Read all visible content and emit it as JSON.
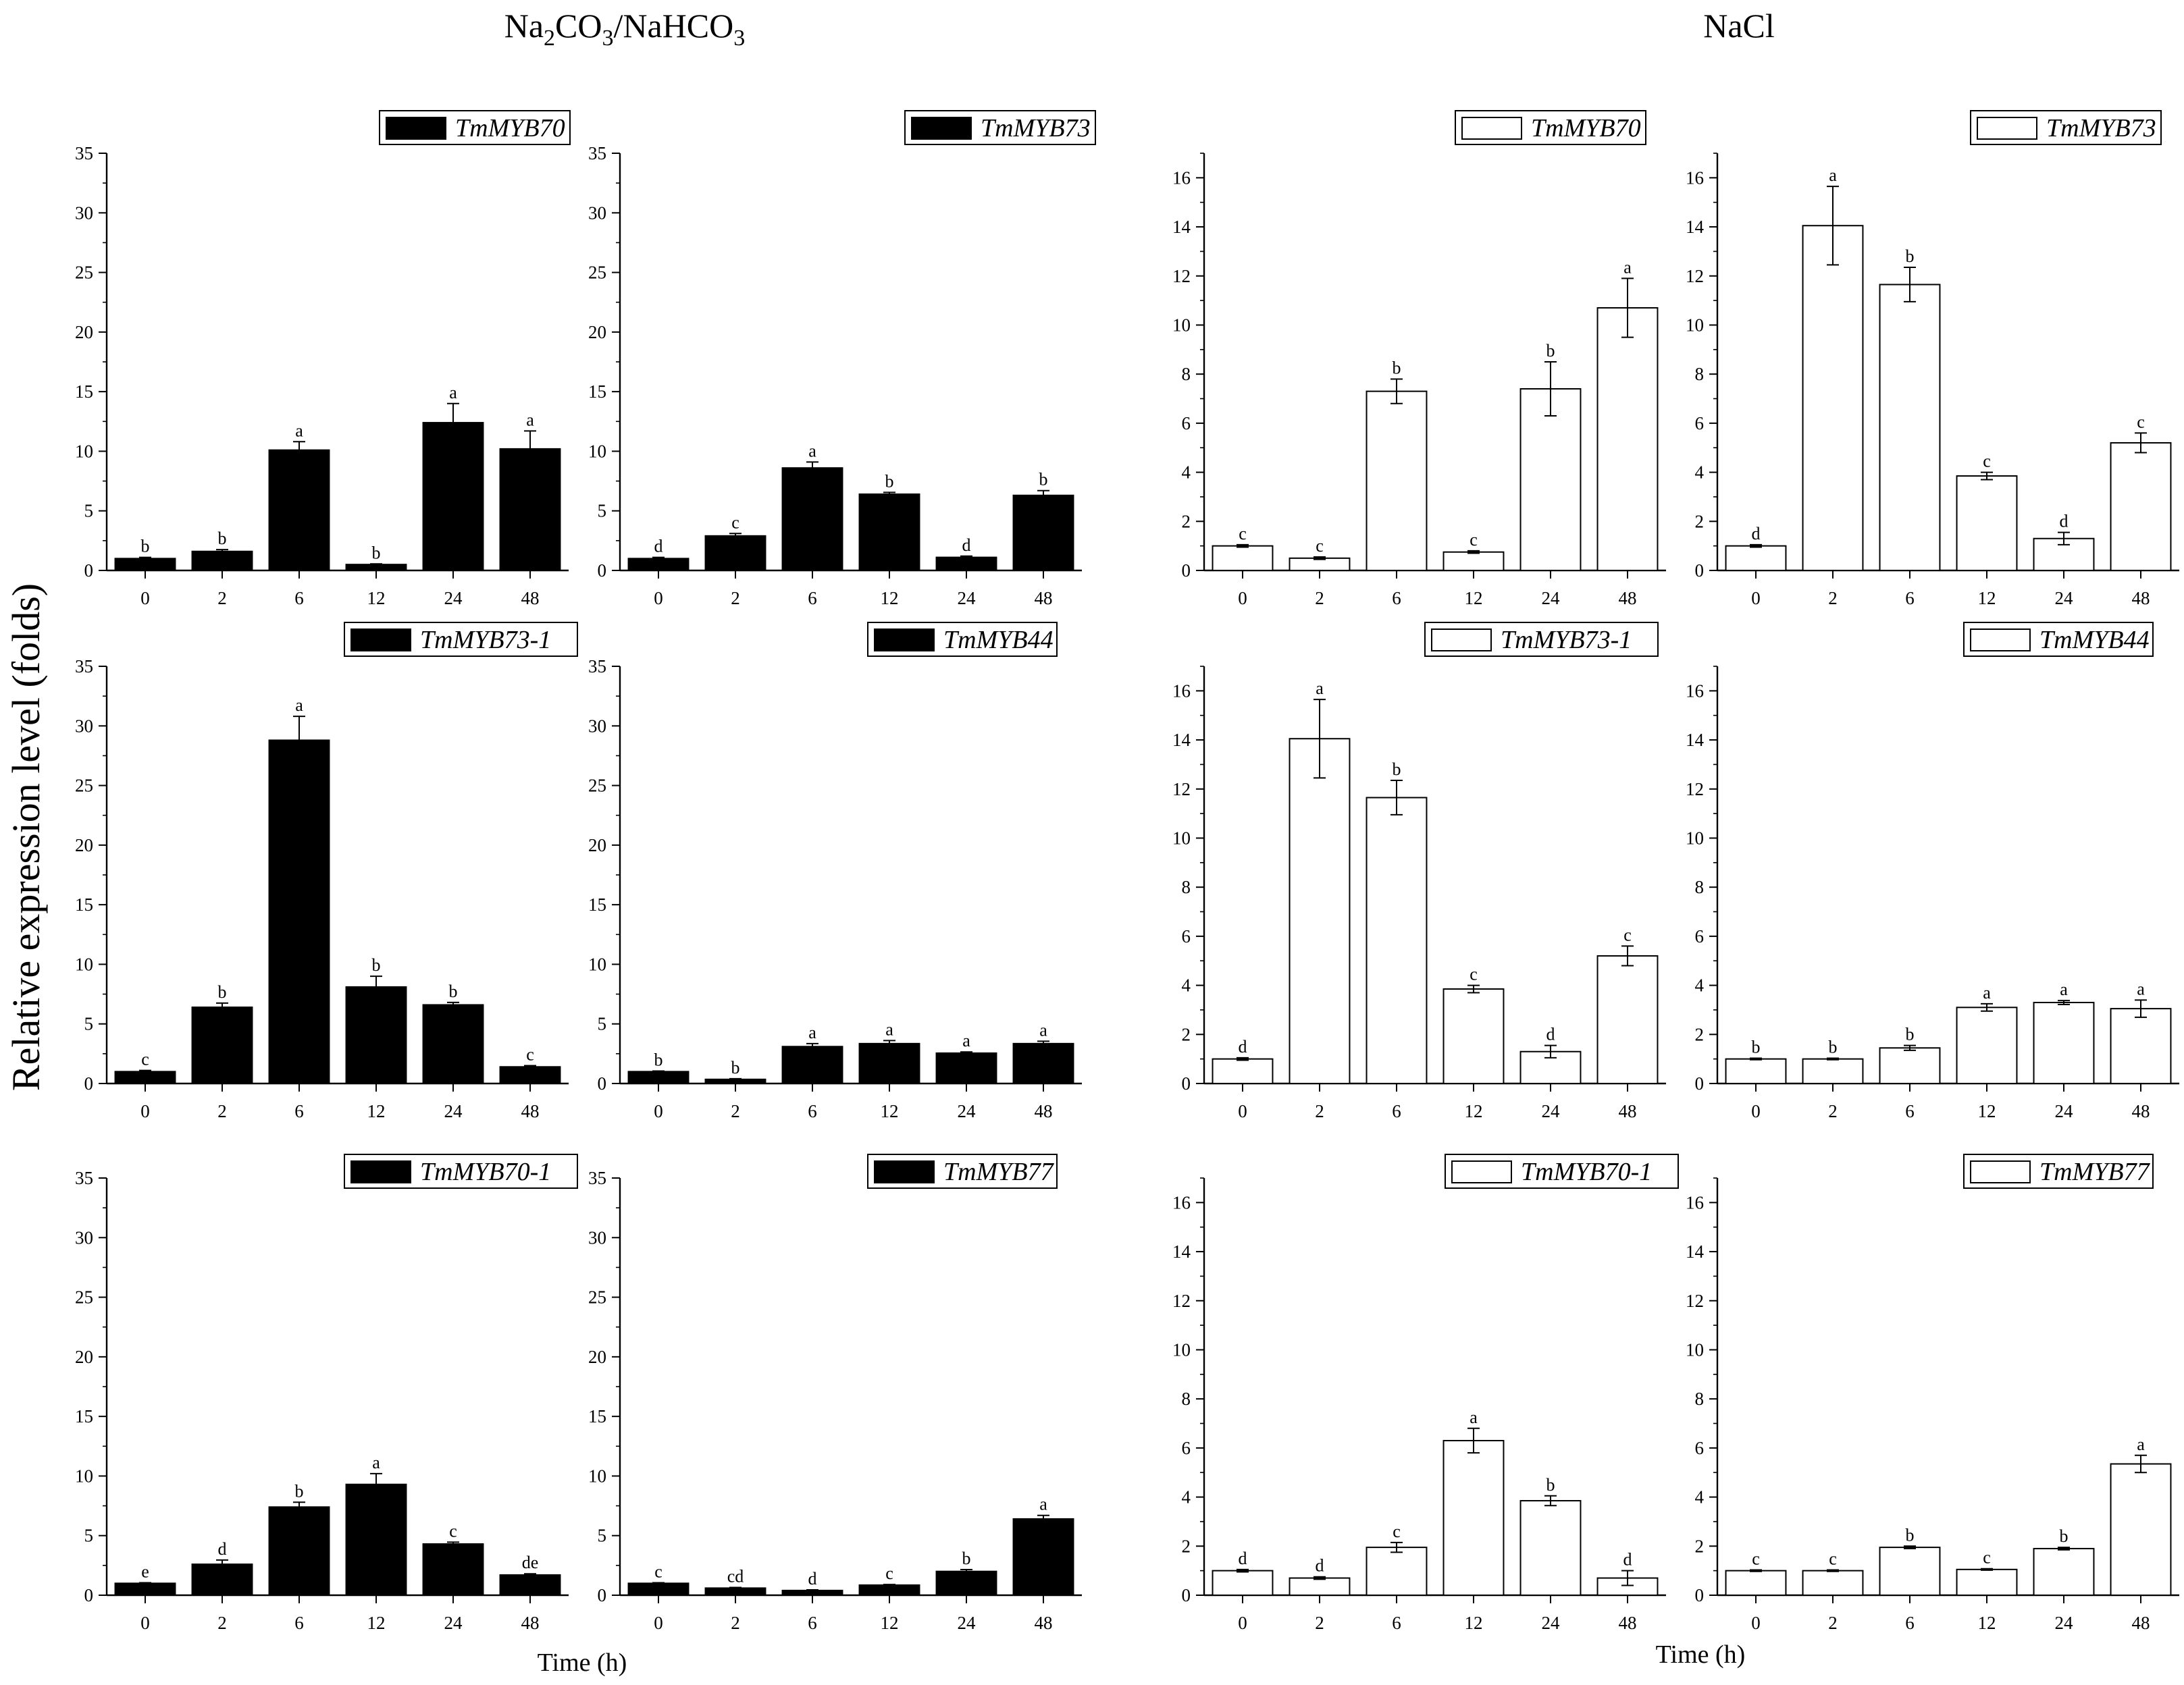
{
  "figure": {
    "group_left_title": "Na2CO3/NaHCO3",
    "group_right_title": "NaCl",
    "ylabel": "Relative expression level (folds)",
    "xlabel": "Time (h)",
    "colors": {
      "black_fill": "#000000",
      "white_fill": "#ffffff",
      "axis": "#000000"
    }
  },
  "chart_data": [
    {
      "type": "bar",
      "group": "Na2CO3/NaHCO3",
      "legend": "TmMYB70",
      "fill": "black",
      "categories": [
        "0",
        "2",
        "6",
        "12",
        "24",
        "48"
      ],
      "values": [
        1.0,
        1.6,
        10.1,
        0.5,
        12.4,
        10.2
      ],
      "errors": [
        0.1,
        0.15,
        0.7,
        0.05,
        1.6,
        1.5
      ],
      "letters": [
        "b",
        "b",
        "a",
        "b",
        "a",
        "a"
      ],
      "ylim": [
        0,
        35
      ],
      "yticks": [
        0,
        5,
        10,
        15,
        20,
        25,
        30,
        35
      ]
    },
    {
      "type": "bar",
      "group": "Na2CO3/NaHCO3",
      "legend": "TmMYB73",
      "fill": "black",
      "categories": [
        "0",
        "2",
        "6",
        "12",
        "24",
        "48"
      ],
      "values": [
        1.0,
        2.9,
        8.6,
        6.4,
        1.1,
        6.3
      ],
      "errors": [
        0.1,
        0.2,
        0.5,
        0.15,
        0.1,
        0.4
      ],
      "letters": [
        "d",
        "c",
        "a",
        "b",
        "d",
        "b"
      ],
      "ylim": [
        0,
        35
      ],
      "yticks": [
        0,
        5,
        10,
        15,
        20,
        25,
        30,
        35
      ]
    },
    {
      "type": "bar",
      "group": "NaCl",
      "legend": "TmMYB70",
      "fill": "white",
      "categories": [
        "0",
        "2",
        "6",
        "12",
        "24",
        "48"
      ],
      "values": [
        1.0,
        0.5,
        7.3,
        0.75,
        7.4,
        10.7
      ],
      "errors": [
        0.05,
        0.05,
        0.5,
        0.05,
        1.1,
        1.2
      ],
      "letters": [
        "c",
        "c",
        "b",
        "c",
        "b",
        "a"
      ],
      "ylim": [
        0,
        17
      ],
      "yticks": [
        0,
        2,
        4,
        6,
        8,
        10,
        12,
        14,
        16
      ]
    },
    {
      "type": "bar",
      "group": "NaCl",
      "legend": "TmMYB73",
      "fill": "white",
      "categories": [
        "0",
        "2",
        "6",
        "12",
        "24",
        "48"
      ],
      "values": [
        1.0,
        14.05,
        11.65,
        3.85,
        1.3,
        5.2
      ],
      "errors": [
        0.05,
        1.6,
        0.7,
        0.15,
        0.25,
        0.4
      ],
      "letters": [
        "d",
        "a",
        "b",
        "c",
        "d",
        "c"
      ],
      "ylim": [
        0,
        17
      ],
      "yticks": [
        0,
        2,
        4,
        6,
        8,
        10,
        12,
        14,
        16
      ]
    },
    {
      "type": "bar",
      "group": "Na2CO3/NaHCO3",
      "legend": "TmMYB73-1",
      "fill": "black",
      "categories": [
        "0",
        "2",
        "6",
        "12",
        "24",
        "48"
      ],
      "values": [
        1.0,
        6.4,
        28.8,
        8.1,
        6.6,
        1.4
      ],
      "errors": [
        0.1,
        0.35,
        2.0,
        0.9,
        0.2,
        0.1
      ],
      "letters": [
        "c",
        "b",
        "a",
        "b",
        "b",
        "c"
      ],
      "ylim": [
        0,
        35
      ],
      "yticks": [
        0,
        5,
        10,
        15,
        20,
        25,
        30,
        35
      ]
    },
    {
      "type": "bar",
      "group": "Na2CO3/NaHCO3",
      "legend": "TmMYB44",
      "fill": "black",
      "categories": [
        "0",
        "2",
        "6",
        "12",
        "24",
        "48"
      ],
      "values": [
        1.0,
        0.35,
        3.1,
        3.35,
        2.55,
        3.35
      ],
      "errors": [
        0.05,
        0.05,
        0.25,
        0.25,
        0.1,
        0.2
      ],
      "letters": [
        "b",
        "b",
        "a",
        "a",
        "a",
        "a"
      ],
      "ylim": [
        0,
        35
      ],
      "yticks": [
        0,
        5,
        10,
        15,
        20,
        25,
        30,
        35
      ]
    },
    {
      "type": "bar",
      "group": "NaCl",
      "legend": "TmMYB73-1",
      "fill": "white",
      "categories": [
        "0",
        "2",
        "6",
        "12",
        "24",
        "48"
      ],
      "values": [
        1.0,
        14.05,
        11.65,
        3.85,
        1.3,
        5.2
      ],
      "errors": [
        0.05,
        1.6,
        0.7,
        0.15,
        0.25,
        0.4
      ],
      "letters": [
        "d",
        "a",
        "b",
        "c",
        "d",
        "c"
      ],
      "ylim": [
        0,
        17
      ],
      "yticks": [
        0,
        2,
        4,
        6,
        8,
        10,
        12,
        14,
        16
      ]
    },
    {
      "type": "bar",
      "group": "NaCl",
      "legend": "TmMYB44",
      "fill": "white",
      "categories": [
        "0",
        "2",
        "6",
        "12",
        "24",
        "48"
      ],
      "values": [
        1.0,
        1.0,
        1.45,
        3.1,
        3.3,
        3.05
      ],
      "errors": [
        0.03,
        0.03,
        0.1,
        0.15,
        0.08,
        0.35
      ],
      "letters": [
        "b",
        "b",
        "b",
        "a",
        "a",
        "a"
      ],
      "ylim": [
        0,
        17
      ],
      "yticks": [
        0,
        2,
        4,
        6,
        8,
        10,
        12,
        14,
        16
      ]
    },
    {
      "type": "bar",
      "group": "Na2CO3/NaHCO3",
      "legend": "TmMYB70-1",
      "fill": "black",
      "categories": [
        "0",
        "2",
        "6",
        "12",
        "24",
        "48"
      ],
      "values": [
        1.0,
        2.6,
        7.4,
        9.3,
        4.3,
        1.7
      ],
      "errors": [
        0.05,
        0.35,
        0.4,
        0.9,
        0.15,
        0.1
      ],
      "letters": [
        "e",
        "d",
        "b",
        "a",
        "c",
        "de"
      ],
      "ylim": [
        0,
        35
      ],
      "yticks": [
        0,
        5,
        10,
        15,
        20,
        25,
        30,
        35
      ]
    },
    {
      "type": "bar",
      "group": "Na2CO3/NaHCO3",
      "legend": "TmMYB77",
      "fill": "black",
      "categories": [
        "0",
        "2",
        "6",
        "12",
        "24",
        "48"
      ],
      "values": [
        1.0,
        0.6,
        0.4,
        0.85,
        2.0,
        6.4
      ],
      "errors": [
        0.05,
        0.05,
        0.05,
        0.05,
        0.15,
        0.3
      ],
      "letters": [
        "c",
        "cd",
        "d",
        "c",
        "b",
        "a"
      ],
      "ylim": [
        0,
        35
      ],
      "yticks": [
        0,
        5,
        10,
        15,
        20,
        25,
        30,
        35
      ]
    },
    {
      "type": "bar",
      "group": "NaCl",
      "legend": "TmMYB70-1",
      "fill": "white",
      "categories": [
        "0",
        "2",
        "6",
        "12",
        "24",
        "48"
      ],
      "values": [
        1.0,
        0.7,
        1.95,
        6.3,
        3.85,
        0.7
      ],
      "errors": [
        0.05,
        0.05,
        0.2,
        0.5,
        0.2,
        0.3
      ],
      "letters": [
        "d",
        "d",
        "c",
        "a",
        "b",
        "d"
      ],
      "ylim": [
        0,
        17
      ],
      "yticks": [
        0,
        2,
        4,
        6,
        8,
        10,
        12,
        14,
        16
      ]
    },
    {
      "type": "bar",
      "group": "NaCl",
      "legend": "TmMYB77",
      "fill": "white",
      "categories": [
        "0",
        "2",
        "6",
        "12",
        "24",
        "48"
      ],
      "values": [
        1.0,
        1.0,
        1.95,
        1.05,
        1.9,
        5.35
      ],
      "errors": [
        0.03,
        0.03,
        0.05,
        0.03,
        0.05,
        0.35
      ],
      "letters": [
        "c",
        "c",
        "b",
        "c",
        "b",
        "a"
      ],
      "ylim": [
        0,
        17
      ],
      "yticks": [
        0,
        2,
        4,
        6,
        8,
        10,
        12,
        14,
        16
      ]
    }
  ]
}
